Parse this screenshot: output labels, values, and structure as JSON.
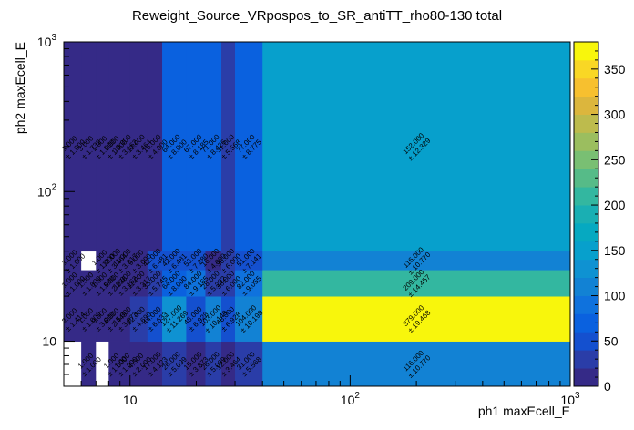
{
  "chart_data": {
    "type": "heatmap",
    "title": "Reweight_Source_VRpospos_to_SR_antiTT_rho80-130 total",
    "xlabel": "ph1 maxEcell_E",
    "ylabel": "ph2 maxEcell_E",
    "x_scale": "log",
    "y_scale": "log",
    "x_range": [
      5,
      1000
    ],
    "y_range": [
      5,
      1000
    ],
    "x_edges": [
      5,
      6,
      7,
      8,
      9,
      10,
      12,
      14,
      18,
      22,
      26,
      30,
      40,
      1000
    ],
    "y_edges": [
      5,
      10,
      20,
      30,
      40,
      1000
    ],
    "x_ticks": [
      {
        "value": 10,
        "base": "10",
        "exp": ""
      },
      {
        "value": 100,
        "base": "10",
        "exp": "2"
      },
      {
        "value": 1000,
        "base": "10",
        "exp": "3"
      }
    ],
    "y_ticks": [
      {
        "value": 10,
        "base": "10",
        "exp": ""
      },
      {
        "value": 100,
        "base": "10",
        "exp": "2"
      },
      {
        "value": 1000,
        "base": "10",
        "exp": "3"
      }
    ],
    "z_range": [
      0,
      380
    ],
    "z_ticks": [
      "0",
      "50",
      "100",
      "150",
      "200",
      "250",
      "300",
      "350"
    ],
    "z_tick_values": [
      0,
      50,
      100,
      150,
      200,
      250,
      300,
      350
    ],
    "grid": false,
    "legend": "color bar right",
    "palette": [
      "#352a87",
      "#2a3da8",
      "#1450cf",
      "#0a61df",
      "#0f72dd",
      "#1282d4",
      "#0f92d2",
      "#07a0cc",
      "#06a9c1",
      "#1aafb3",
      "#33b7a0",
      "#56bb88",
      "#79bf73",
      "#9bbe5f",
      "#bdbb4d",
      "#dcb63d",
      "#f7c02f",
      "#f9d725",
      "#f8f60c"
    ],
    "cells": [
      {
        "ix": 0,
        "iy": 4,
        "v": 1,
        "e": "1.000",
        "label": "1.000"
      },
      {
        "ix": 1,
        "iy": 4,
        "v": 3,
        "e": "1.732",
        "label": "3.000"
      },
      {
        "ix": 2,
        "iy": 4,
        "v": 1,
        "e": "1.000",
        "label": "1.000"
      },
      {
        "ix": 3,
        "iy": 4,
        "v": 1,
        "e": "1.000",
        "label": "1.000"
      },
      {
        "ix": 4,
        "iy": 4,
        "v": 10,
        "e": "3.162",
        "label": "10.000"
      },
      {
        "ix": 5,
        "iy": 4,
        "v": 12,
        "e": "3.464",
        "label": "12.000"
      },
      {
        "ix": 6,
        "iy": 4,
        "v": 16,
        "e": "4.000",
        "label": "16.000"
      },
      {
        "ix": 7,
        "iy": 4,
        "v": 64,
        "e": "8.000",
        "label": "64.000"
      },
      {
        "ix": 8,
        "iy": 4,
        "v": 67,
        "e": "8.185",
        "label": "67.000"
      },
      {
        "ix": 9,
        "iy": 4,
        "v": 71,
        "e": "8.426",
        "label": "71.000"
      },
      {
        "ix": 10,
        "iy": 4,
        "v": 31,
        "e": "5.568",
        "label": "31.000"
      },
      {
        "ix": 11,
        "iy": 4,
        "v": 77,
        "e": "8.775",
        "label": "77.000"
      },
      {
        "ix": 12,
        "iy": 4,
        "v": 152,
        "e": "12.329",
        "label": "152.000"
      },
      {
        "ix": 0,
        "iy": 3,
        "v": 1,
        "e": "1.000",
        "label": "1.000"
      },
      {
        "ix": 2,
        "iy": 3,
        "v": 1,
        "e": "1.000",
        "label": "1.000"
      },
      {
        "ix": 3,
        "iy": 3,
        "v": 12,
        "e": "3.464",
        "label": "12.000"
      },
      {
        "ix": 4,
        "iy": 3,
        "v": 11,
        "e": "3.317",
        "label": "11.000"
      },
      {
        "ix": 5,
        "iy": 3,
        "v": 9,
        "e": "3.000",
        "label": "9.000"
      },
      {
        "ix": 6,
        "iy": 3,
        "v": 42,
        "e": "6.481",
        "label": "42.000"
      },
      {
        "ix": 7,
        "iy": 3,
        "v": 42,
        "e": "6.481",
        "label": "42.000"
      },
      {
        "ix": 8,
        "iy": 3,
        "v": 53,
        "e": "7.280",
        "label": "53.000"
      },
      {
        "ix": 9,
        "iy": 3,
        "v": 16,
        "e": "4.000",
        "label": "16.000"
      },
      {
        "ix": 10,
        "iy": 3,
        "v": 36,
        "e": "6.000",
        "label": "36.000"
      },
      {
        "ix": 11,
        "iy": 3,
        "v": 51,
        "e": "7.141",
        "label": "51.000"
      },
      {
        "ix": 12,
        "iy": 3,
        "v": 116,
        "e": "10.770",
        "label": "116.000"
      },
      {
        "ix": 0,
        "iy": 2,
        "v": 1,
        "e": "1.000",
        "label": "1.000"
      },
      {
        "ix": 1,
        "iy": 2,
        "v": 1,
        "e": "1.000",
        "label": "1.000"
      },
      {
        "ix": 2,
        "iy": 2,
        "v": 1,
        "e": "1.000",
        "label": "1.000"
      },
      {
        "ix": 3,
        "iy": 2,
        "v": 5,
        "e": "2.236",
        "label": "5.000"
      },
      {
        "ix": 4,
        "iy": 2,
        "v": 10,
        "e": "3.162",
        "label": "10.000"
      },
      {
        "ix": 5,
        "iy": 2,
        "v": 11,
        "e": "3.317",
        "label": "11.000"
      },
      {
        "ix": 6,
        "iy": 2,
        "v": 33,
        "e": "5.745",
        "label": "33.000"
      },
      {
        "ix": 7,
        "iy": 2,
        "v": 64,
        "e": "8.000",
        "label": "64.000"
      },
      {
        "ix": 8,
        "iy": 2,
        "v": 84,
        "e": "9.165",
        "label": "84.000"
      },
      {
        "ix": 9,
        "iy": 2,
        "v": 28,
        "e": "5.292",
        "label": "28.000"
      },
      {
        "ix": 10,
        "iy": 2,
        "v": 36,
        "e": "6.000",
        "label": "36.000"
      },
      {
        "ix": 11,
        "iy": 2,
        "v": 82,
        "e": "9.055",
        "label": "82.000"
      },
      {
        "ix": 12,
        "iy": 2,
        "v": 209,
        "e": "14.457",
        "label": "209.000"
      },
      {
        "ix": 0,
        "iy": 1,
        "v": 2,
        "e": "1.414",
        "label": "2.000"
      },
      {
        "ix": 1,
        "iy": 1,
        "v": 1,
        "e": "1.000",
        "label": "1.000"
      },
      {
        "ix": 2,
        "iy": 1,
        "v": 9,
        "e": "3.000",
        "label": "9.000"
      },
      {
        "ix": 3,
        "iy": 1,
        "v": 6,
        "e": "2.449",
        "label": "6.000"
      },
      {
        "ix": 4,
        "iy": 1,
        "v": 15,
        "e": "3.873",
        "label": "15.000"
      },
      {
        "ix": 5,
        "iy": 1,
        "v": 22,
        "e": "4.690",
        "label": "22.000"
      },
      {
        "ix": 6,
        "iy": 1,
        "v": 44,
        "e": "6.633",
        "label": "44.000"
      },
      {
        "ix": 7,
        "iy": 1,
        "v": 127,
        "e": "11.269",
        "label": "127.000"
      },
      {
        "ix": 8,
        "iy": 1,
        "v": 48,
        "e": "6.928",
        "label": "48.000"
      },
      {
        "ix": 9,
        "iy": 1,
        "v": 103,
        "e": "10.149",
        "label": "103.000"
      },
      {
        "ix": 10,
        "iy": 1,
        "v": 48,
        "e": "6.928",
        "label": "48.000"
      },
      {
        "ix": 11,
        "iy": 1,
        "v": 104,
        "e": "10.198",
        "label": "104.000"
      },
      {
        "ix": 12,
        "iy": 1,
        "v": 379,
        "e": "19.468",
        "label": "379.000"
      },
      {
        "ix": 1,
        "iy": 0,
        "v": 1,
        "e": "1.000",
        "label": "1.000"
      },
      {
        "ix": 3,
        "iy": 0,
        "v": 1,
        "e": "1.000",
        "label": "1.000"
      },
      {
        "ix": 4,
        "iy": 0,
        "v": 1,
        "e": "1.000",
        "label": "1.000"
      },
      {
        "ix": 5,
        "iy": 0,
        "v": 4,
        "e": "2.000",
        "label": "4.000"
      },
      {
        "ix": 6,
        "iy": 0,
        "v": 17,
        "e": "4.123",
        "label": "17.000"
      },
      {
        "ix": 7,
        "iy": 0,
        "v": 26,
        "e": "5.099",
        "label": "26.000"
      },
      {
        "ix": 8,
        "iy": 0,
        "v": 15,
        "e": "3.873",
        "label": "15.000"
      },
      {
        "ix": 9,
        "iy": 0,
        "v": 26,
        "e": "5.099",
        "label": "26.000"
      },
      {
        "ix": 10,
        "iy": 0,
        "v": 12,
        "e": "3.464",
        "label": "12.000"
      },
      {
        "ix": 11,
        "iy": 0,
        "v": 31,
        "e": "5.568",
        "label": "31.000"
      },
      {
        "ix": 12,
        "iy": 0,
        "v": 116,
        "e": "10.770",
        "label": "116.000"
      }
    ]
  }
}
